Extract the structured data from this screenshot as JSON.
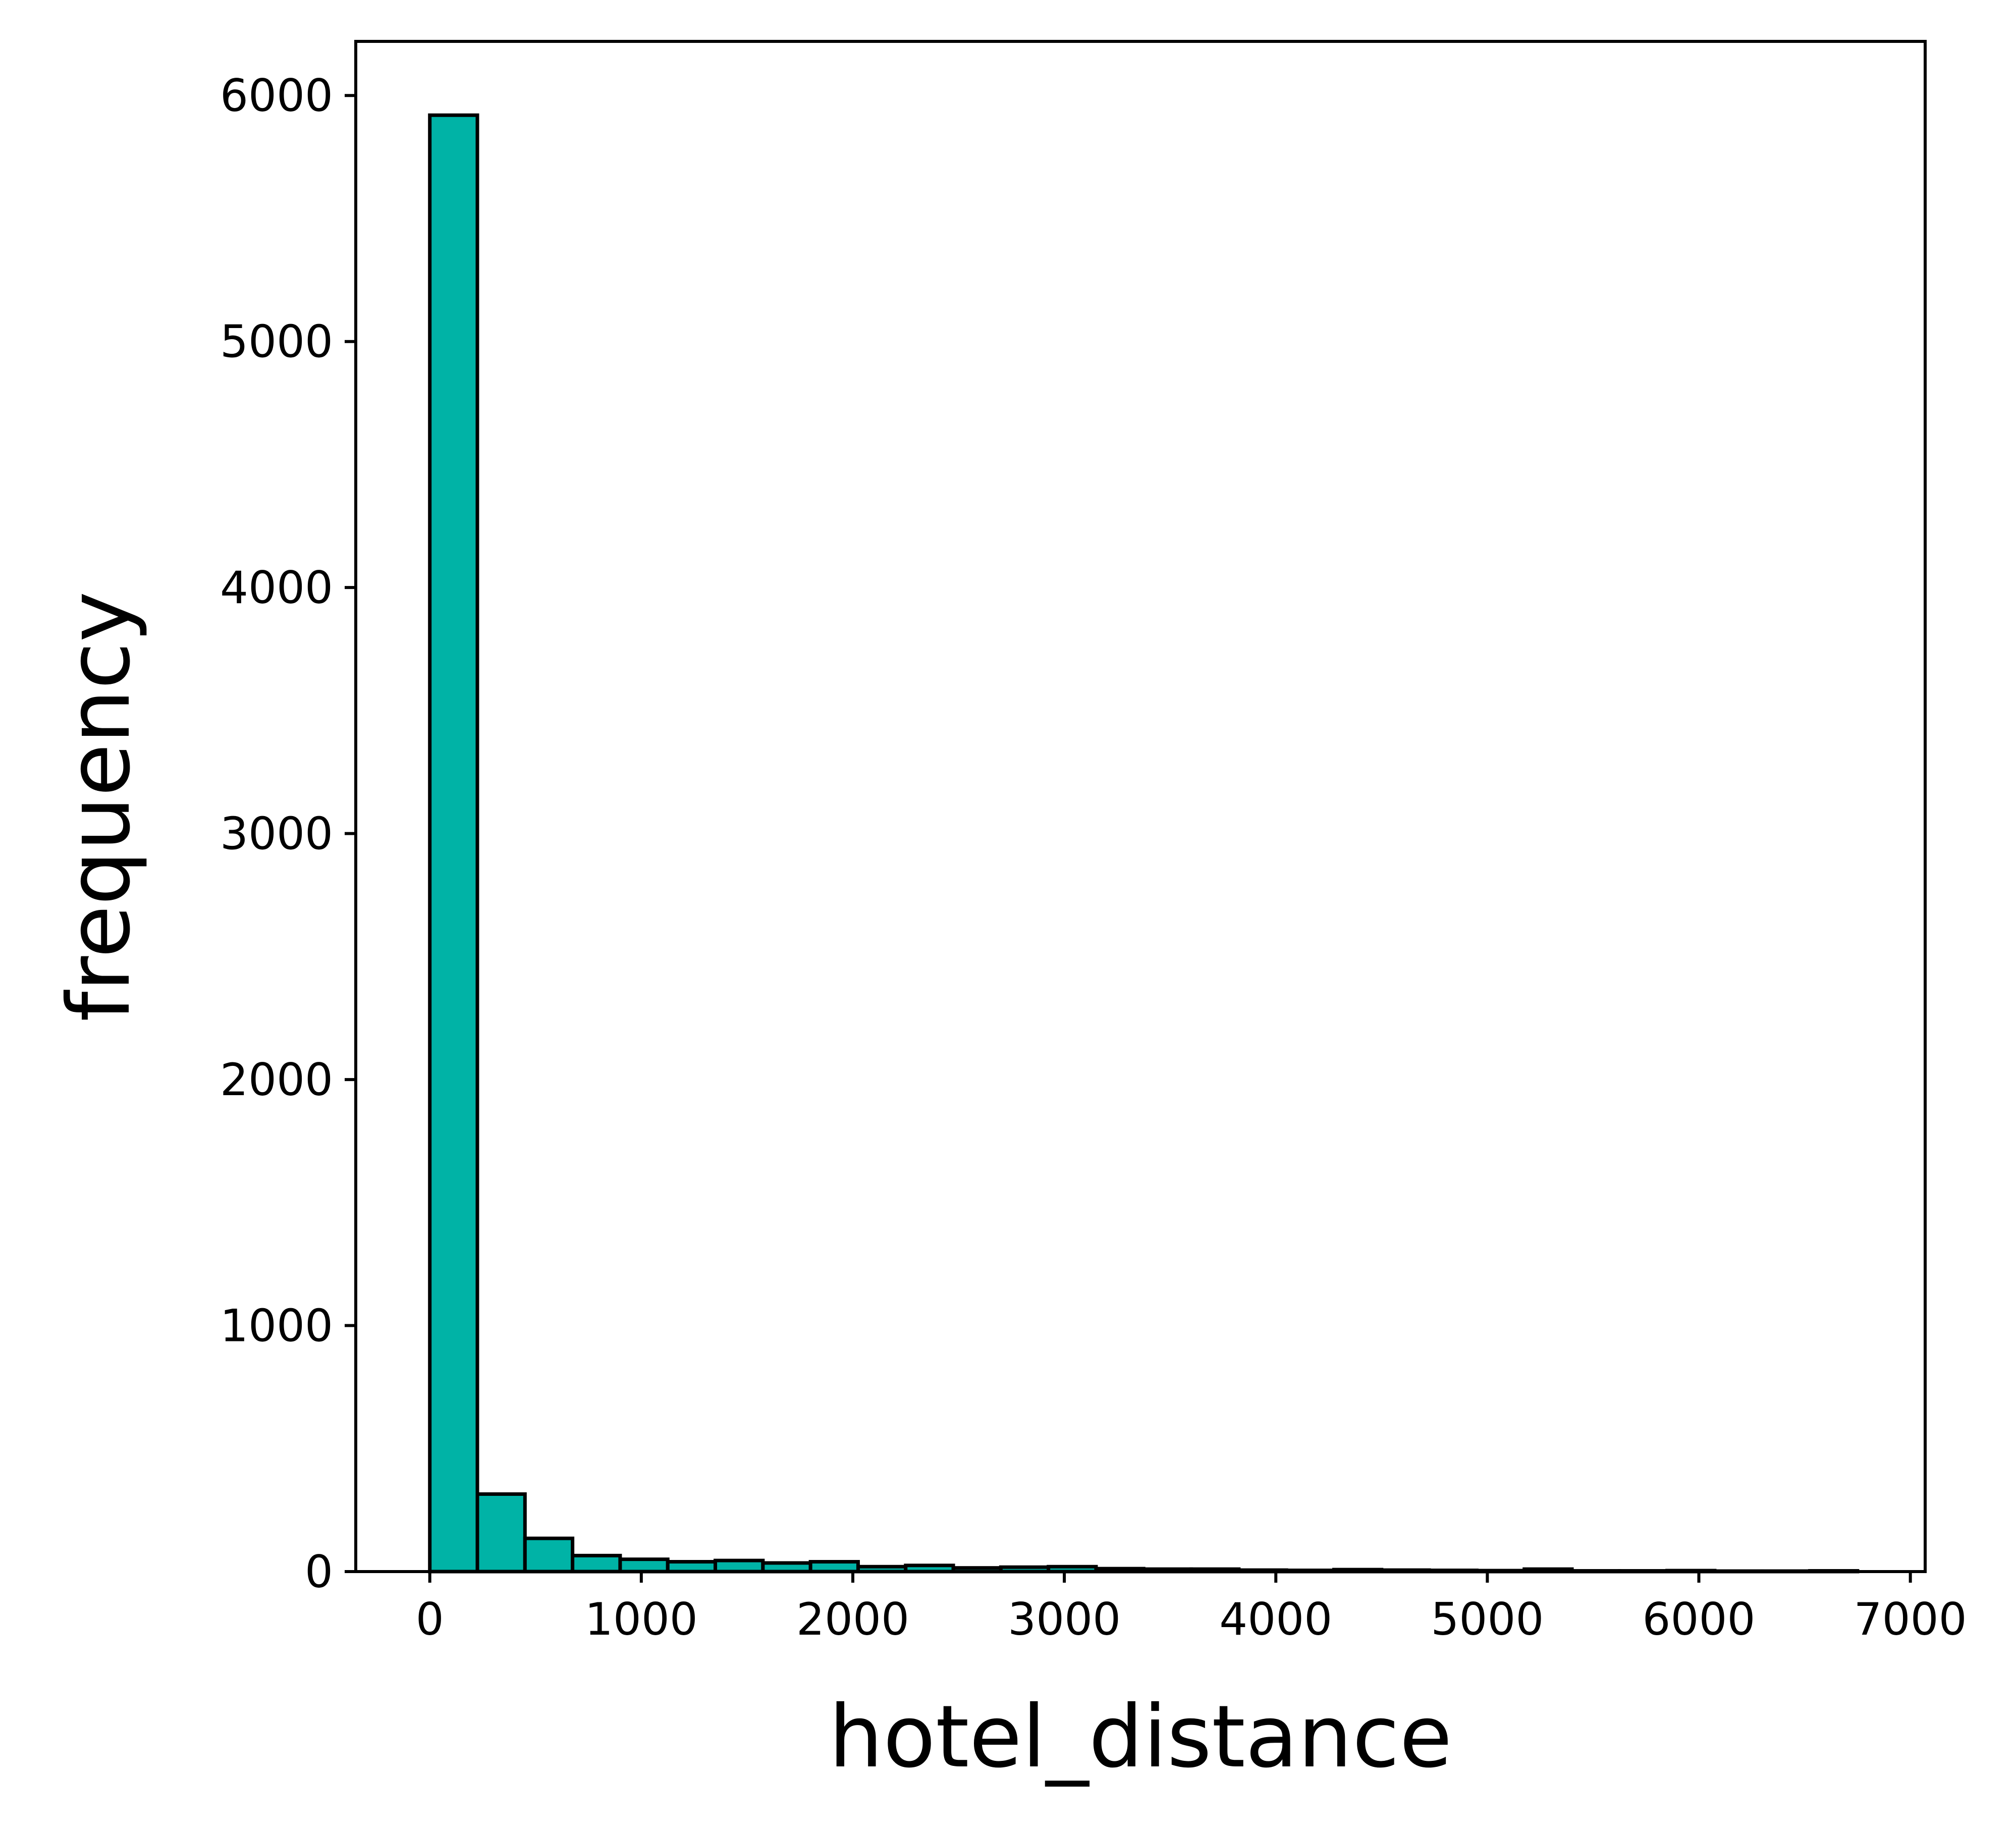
{
  "chart_data": {
    "type": "bar",
    "title": "",
    "xlabel": "hotel_distance",
    "ylabel": "frequency",
    "xlim": [
      -350,
      7070
    ],
    "ylim": [
      0,
      6220
    ],
    "xticks": [
      0,
      1000,
      2000,
      3000,
      4000,
      5000,
      6000,
      7000
    ],
    "yticks": [
      0,
      1000,
      2000,
      3000,
      4000,
      5000,
      6000
    ],
    "xtick_labels": [
      "0",
      "1000",
      "2000",
      "3000",
      "4000",
      "5000",
      "6000",
      "7000"
    ],
    "ytick_labels": [
      "0",
      "1000",
      "2000",
      "3000",
      "4000",
      "5000",
      "6000"
    ],
    "bin_edges": [
      0,
      225,
      450,
      675,
      900,
      1125,
      1350,
      1575,
      1800,
      2025,
      2250,
      2475,
      2700,
      2925,
      3150,
      3375,
      3600,
      3825,
      4050,
      4275,
      4500,
      4725,
      4950,
      5175,
      5400,
      5625,
      5850,
      6075,
      6300,
      6525,
      6750
    ],
    "counts": [
      5920,
      315,
      135,
      65,
      50,
      40,
      45,
      35,
      40,
      20,
      25,
      15,
      18,
      20,
      12,
      10,
      10,
      6,
      5,
      8,
      6,
      5,
      4,
      10,
      3,
      3,
      4,
      2,
      2,
      3
    ],
    "bar_color": "#00b3a6",
    "edge_color": "#000000",
    "grid": false,
    "legend": "none"
  }
}
